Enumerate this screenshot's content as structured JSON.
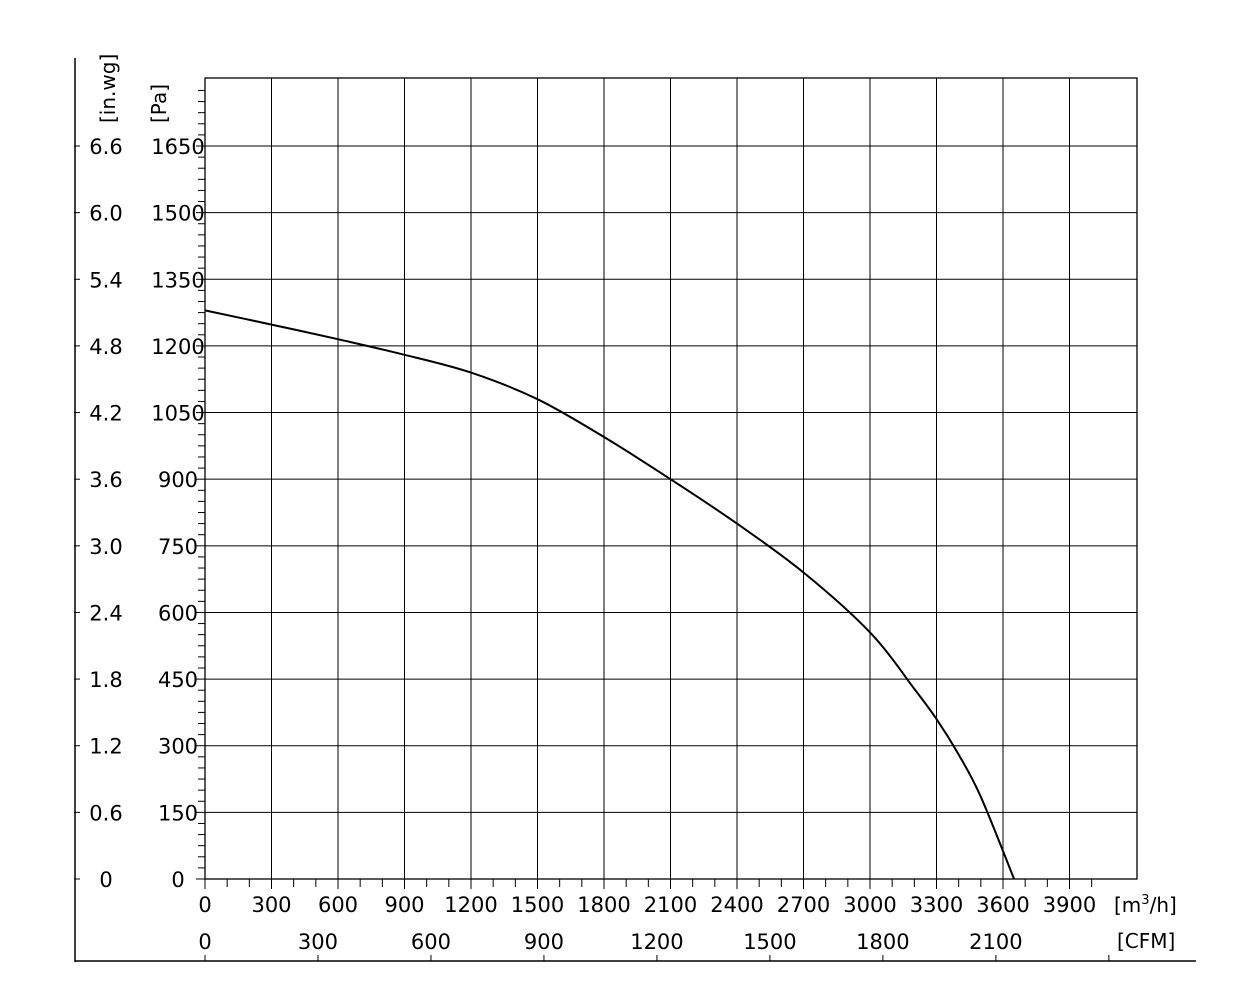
{
  "chart_data": {
    "type": "line",
    "title": "",
    "grid": true,
    "x_units": {
      "primary": {
        "label_base": "[m",
        "label_sup": "3",
        "label_tail": "/h]",
        "range": [
          0,
          4000
        ],
        "ticks": [
          "0",
          "300",
          "600",
          "900",
          "1200",
          "1500",
          "1800",
          "2100",
          "2400",
          "2700",
          "3000",
          "3300",
          "3600",
          "3900"
        ]
      },
      "secondary": {
        "label": "[CFM]",
        "ticks": [
          "0",
          "300",
          "600",
          "900",
          "1200",
          "1500",
          "1800",
          "2100"
        ]
      }
    },
    "y_units": {
      "primary": {
        "label": "[Pa]",
        "range": [
          0,
          1800
        ],
        "ticks": [
          "0",
          "150",
          "300",
          "450",
          "600",
          "750",
          "900",
          "1050",
          "1200",
          "1350",
          "1500",
          "1650"
        ]
      },
      "secondary": {
        "label": "[in.wg]",
        "ticks": [
          "0",
          "0.6",
          "1.2",
          "1.8",
          "2.4",
          "3.0",
          "3.6",
          "4.2",
          "4.8",
          "5.4",
          "6.0",
          "6.6"
        ]
      }
    },
    "series": [
      {
        "x": [
          0,
          300,
          600,
          900,
          1200,
          1500,
          1800,
          2100,
          2400,
          2700,
          3000,
          3200,
          3300,
          3400,
          3500,
          3650
        ],
        "y": [
          1280,
          1248,
          1215,
          1180,
          1140,
          1080,
          995,
          900,
          800,
          690,
          555,
          428,
          360,
          280,
          185,
          0
        ]
      }
    ]
  }
}
